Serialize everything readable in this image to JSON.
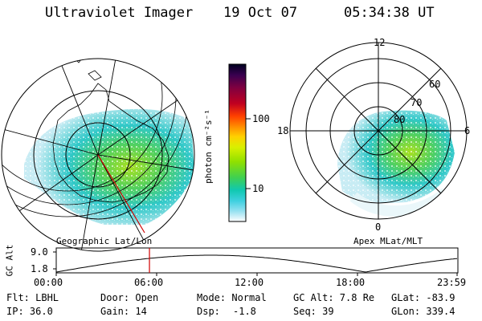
{
  "header": {
    "title": "Ultraviolet Imager",
    "date": "19 Oct 07",
    "time": "05:34:38 UT"
  },
  "left_map": {
    "caption": "Geographic Lat/Lon"
  },
  "right_map": {
    "caption": "Apex MLat/MLT",
    "mlt_labels": [
      "12",
      "18",
      "6",
      "0"
    ],
    "mlat_labels": [
      "60",
      "70",
      "80"
    ]
  },
  "colorbar": {
    "unit_label": "photon cm⁻²s⁻¹",
    "tick_labels": [
      "100",
      "10"
    ],
    "colors": [
      "#000020",
      "#3a0050",
      "#800040",
      "#c00020",
      "#ff4000",
      "#ff9000",
      "#ffd000",
      "#d8f000",
      "#90e000",
      "#40d050",
      "#10c8b0",
      "#40d0e0",
      "#90e0f0",
      "#d0f0f8",
      "#ffffff"
    ]
  },
  "orbit": {
    "axis_label": "GC Alt",
    "y_ticks": [
      "9.0",
      "1.8"
    ],
    "x_ticks": [
      "00:00",
      "06:00",
      "12:00",
      "18:00",
      "23:59"
    ],
    "current_time_hours": 5.577
  },
  "info": {
    "row1": {
      "filter": "Flt: LBHL",
      "door": "Door: Open",
      "mode": "Mode: Normal",
      "gc_alt": "GC Alt: 7.8 Re",
      "glat": "GLat: -83.9"
    },
    "row2": {
      "ip": "IP: 36.0",
      "gain": "Gain: 14",
      "dsp_label": "Dsp:",
      "dsp_value": "-1.8",
      "seq": "Seq: 39",
      "glon": "GLon: 339.4"
    }
  }
}
